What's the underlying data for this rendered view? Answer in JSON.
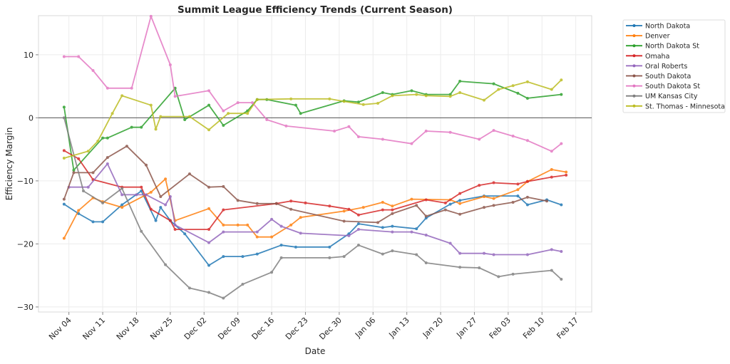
{
  "chart_data": {
    "type": "line",
    "title": "Summit League Efficiency Trends (Current Season)",
    "xlabel": "Date",
    "ylabel": "Efficiency Margin",
    "x_unit": "days after Nov 04",
    "xlim": [
      -6.3,
      108.3
    ],
    "ylim": [
      -30.8,
      16.2
    ],
    "yticks": [
      10,
      0,
      -10,
      -20,
      -30
    ],
    "ytick_labels": [
      "10",
      "0",
      "−10",
      "−20",
      "−30"
    ],
    "xticks": [
      0,
      7,
      14,
      21,
      28,
      35,
      42,
      49,
      56,
      63,
      70,
      77,
      84,
      91,
      98,
      105
    ],
    "xtick_labels": [
      "Nov 04",
      "Nov 11",
      "Nov 18",
      "Nov 25",
      "Dec 02",
      "Dec 09",
      "Dec 16",
      "Dec 23",
      "Dec 30",
      "Jan 06",
      "Jan 13",
      "Jan 20",
      "Jan 27",
      "Feb 03",
      "Feb 10",
      "Feb 17"
    ],
    "grid": true,
    "reference_line_y": 0,
    "legend_position": "outside-top-right",
    "series": [
      {
        "name": "North Dakota",
        "color": "#1f77b4",
        "x": [
          -1,
          2,
          5,
          7,
          11,
          15,
          18,
          19,
          21,
          24,
          29,
          32,
          36,
          39,
          44,
          47,
          54,
          58,
          60,
          65,
          67,
          72,
          74,
          79,
          81,
          86,
          93,
          95,
          99,
          102
        ],
        "y": [
          -13.7,
          -15.2,
          -16.5,
          -16.5,
          -13.8,
          -11.6,
          -16.3,
          -14.2,
          -16.3,
          -18.4,
          -23.4,
          -22,
          -22,
          -21.6,
          -20.2,
          -20.5,
          -20.5,
          -18.4,
          -16.8,
          -17.4,
          -17.2,
          -17.6,
          -15.9,
          -13.7,
          -13.1,
          -12.4,
          -12.4,
          -13.8,
          -13.0,
          -13.8
        ]
      },
      {
        "name": "Denver",
        "color": "#ff7f0e",
        "x": [
          -1,
          2,
          5,
          7,
          11,
          17,
          20,
          22,
          29,
          32,
          35,
          37,
          39,
          42,
          46,
          48,
          57,
          61,
          65,
          67,
          71,
          79,
          81,
          86,
          88,
          93,
          95,
          100,
          103
        ],
        "y": [
          -19.1,
          -14.7,
          -12.7,
          -13.3,
          -14.2,
          -11.8,
          -9.7,
          -16.3,
          -14.4,
          -17,
          -17,
          -17,
          -18.9,
          -18.9,
          -17,
          -15.8,
          -14.8,
          -14.2,
          -13.4,
          -14.0,
          -12.9,
          -13.0,
          -13.6,
          -12.5,
          -12.8,
          -11.4,
          -10.1,
          -8.2,
          -8.6
        ]
      },
      {
        "name": "North Dakota St",
        "color": "#2ca02c",
        "x": [
          -1,
          1,
          7,
          8,
          13,
          15,
          22,
          24,
          29,
          32,
          37,
          39,
          41,
          47,
          48,
          57,
          60,
          65,
          67,
          71,
          74,
          79,
          81,
          88,
          93,
          95,
          102
        ],
        "y": [
          1.7,
          -8.3,
          -3.2,
          -3.2,
          -1.5,
          -1.5,
          4.7,
          -0.3,
          2.0,
          -1.2,
          1.1,
          2.9,
          2.9,
          2.0,
          0.7,
          2.7,
          2.5,
          4.0,
          3.7,
          4.3,
          3.7,
          3.7,
          5.8,
          5.4,
          3.9,
          3.1,
          3.7
        ]
      },
      {
        "name": "Omaha",
        "color": "#d62728",
        "x": [
          -1,
          2,
          5,
          11,
          15,
          17,
          21,
          22,
          29,
          32,
          43,
          46,
          49,
          54,
          58,
          60,
          65,
          67,
          74,
          78,
          81,
          85,
          88,
          93,
          95,
          100,
          103
        ],
        "y": [
          -5.2,
          -6.5,
          -9.8,
          -11.0,
          -11.0,
          -14.5,
          -16.3,
          -17.7,
          -17.7,
          -14.6,
          -13.6,
          -13.2,
          -13.5,
          -14.0,
          -14.5,
          -15.4,
          -14.6,
          -14.6,
          -13.0,
          -13.5,
          -12.0,
          -10.7,
          -10.3,
          -10.5,
          -10.1,
          -9.4,
          -9.1
        ]
      },
      {
        "name": "Oral Roberts",
        "color": "#9467bd",
        "x": [
          0,
          4,
          8,
          11,
          14,
          16,
          20,
          21,
          22,
          29,
          32,
          39,
          42,
          44,
          48,
          58,
          60,
          67,
          71,
          74,
          79,
          81,
          86,
          88,
          95,
          100,
          102
        ],
        "y": [
          -11.0,
          -11.0,
          -7.3,
          -12.2,
          -12.2,
          -12.2,
          -13.8,
          -12.5,
          -17.0,
          -19.8,
          -18.1,
          -18.1,
          -16.1,
          -17.2,
          -18.3,
          -18.7,
          -17.7,
          -18.1,
          -18.1,
          -18.6,
          -19.9,
          -21.5,
          -21.5,
          -21.7,
          -21.7,
          -20.9,
          -21.2
        ]
      },
      {
        "name": "South Dakota",
        "color": "#8c564b",
        "x": [
          -1,
          1,
          5,
          8,
          12,
          16,
          19,
          25,
          29,
          32,
          35,
          39,
          43,
          46,
          57,
          64,
          67,
          72,
          74,
          78,
          81,
          86,
          88,
          92,
          95,
          99
        ],
        "y": [
          -12.9,
          -8.7,
          -8.7,
          -6.3,
          -4.5,
          -7.5,
          -12.5,
          -8.9,
          -11.0,
          -10.9,
          -13.1,
          -13.6,
          -13.6,
          -14.5,
          -16.4,
          -16.6,
          -15.2,
          -13.9,
          -15.6,
          -14.6,
          -15.3,
          -14.2,
          -13.9,
          -13.4,
          -12.6,
          -13.2
        ]
      },
      {
        "name": "South Dakota St",
        "color": "#e377c2",
        "x": [
          -1,
          2,
          5,
          8,
          13,
          17,
          21,
          22,
          29,
          32,
          35,
          38,
          41,
          45,
          55,
          58,
          60,
          65,
          71,
          74,
          79,
          85,
          88,
          92,
          95,
          100,
          102
        ],
        "y": [
          9.7,
          9.7,
          7.5,
          4.7,
          4.7,
          16.1,
          8.4,
          3.4,
          4.3,
          1.1,
          2.4,
          2.4,
          -0.3,
          -1.3,
          -2.1,
          -1.4,
          -3.0,
          -3.4,
          -4.1,
          -2.1,
          -2.3,
          -3.4,
          -2.0,
          -2.9,
          -3.6,
          -5.3,
          -4.1
        ]
      },
      {
        "name": "UM Kansas City",
        "color": "#7f7f7f",
        "x": [
          -1,
          3,
          7,
          11,
          15,
          20,
          25,
          29,
          32,
          36,
          42,
          44,
          54,
          57,
          60,
          65,
          67,
          72,
          74,
          81,
          85,
          89,
          92,
          100,
          102
        ],
        "y": [
          0,
          -11.6,
          -13.5,
          -11.2,
          -18.0,
          -23.3,
          -27.0,
          -27.7,
          -28.6,
          -26.4,
          -24.5,
          -22.2,
          -22.2,
          -22.0,
          -20.2,
          -21.6,
          -21.1,
          -21.7,
          -23.0,
          -23.7,
          -23.8,
          -25.2,
          -24.8,
          -24.2,
          -25.6
        ]
      },
      {
        "name": "St. Thomas - Minnesota",
        "color": "#bcbd22",
        "x": [
          -1,
          4,
          6,
          9,
          11,
          17,
          18,
          19,
          25,
          29,
          33,
          37,
          39,
          46,
          54,
          57,
          61,
          64,
          67,
          72,
          74,
          79,
          81,
          86,
          89,
          92,
          95,
          100,
          102
        ],
        "y": [
          -6.4,
          -5.3,
          -3.7,
          0.7,
          3.5,
          2.0,
          -1.8,
          0.2,
          0.2,
          -1.9,
          0.7,
          0.7,
          2.9,
          3.0,
          3.0,
          2.6,
          2.1,
          2.3,
          3.5,
          3.7,
          3.5,
          3.4,
          4.0,
          2.8,
          4.5,
          5.1,
          5.7,
          4.5,
          6.0
        ]
      }
    ]
  }
}
